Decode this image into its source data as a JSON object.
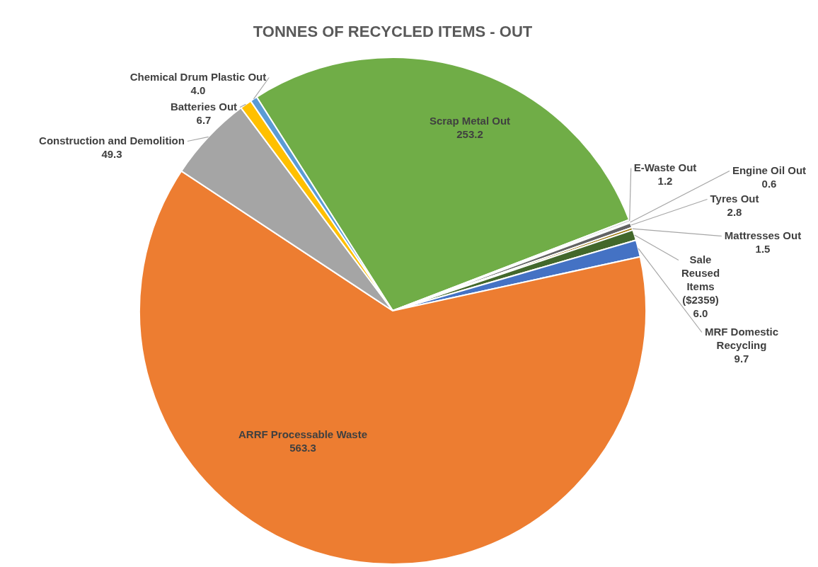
{
  "chart_data": {
    "type": "pie",
    "title": "TONNES OF RECYCLED ITEMS - OUT",
    "categories": [
      "Scrap Metal Out",
      "E-Waste Out",
      "Engine Oil Out",
      "Tyres Out",
      "Mattresses Out",
      "Sale Reused Items ($2359)",
      "MRF Domestic Recycling",
      "ARRF Processable Waste",
      "Construction and Demolition",
      "Batteries Out",
      "Chemical Drum Plastic Out"
    ],
    "values": [
      253.2,
      1.2,
      0.6,
      2.8,
      1.5,
      6.0,
      9.7,
      563.3,
      49.3,
      6.7,
      4.0
    ],
    "value_labels": [
      "253.2",
      "1.2",
      "0.6",
      "2.8",
      "1.5",
      "6.0",
      "9.7",
      "563.3",
      "49.3",
      "6.7",
      "4.0"
    ],
    "colors": [
      "#70ad47",
      "#c9c9c9",
      "#7f7f7f",
      "#636363",
      "#997300",
      "#43682b",
      "#4472c4",
      "#ed7d31",
      "#a5a5a5",
      "#ffc000",
      "#5b9bd5"
    ],
    "legend": false
  }
}
